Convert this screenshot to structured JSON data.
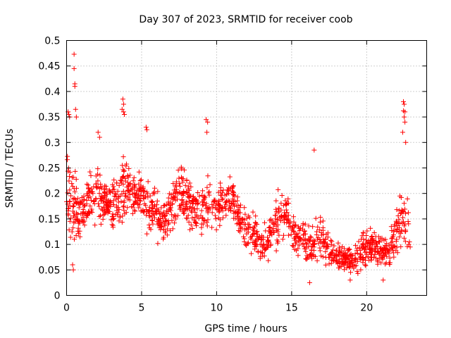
{
  "chart_data": {
    "type": "scatter",
    "title": "Day 307 of 2023, SRMTID for receiver coob",
    "xlabel": "GPS time / hours",
    "ylabel": "SRMTID / TECUs",
    "xlim": [
      0,
      24
    ],
    "ylim": [
      0,
      0.5
    ],
    "xticks": [
      0,
      5,
      10,
      15,
      20
    ],
    "xtick_labels": [
      "0",
      "5",
      "10",
      "15",
      "20"
    ],
    "yticks": [
      0,
      0.05,
      0.1,
      0.15,
      0.2,
      0.25,
      0.3,
      0.35,
      0.4,
      0.45,
      0.5
    ],
    "ytick_labels": [
      "0",
      "0.05",
      "0.1",
      "0.15",
      "0.2",
      "0.25",
      "0.3",
      "0.35",
      "0.4",
      "0.45",
      "0.5"
    ],
    "grid": true,
    "marker": "plus",
    "series_color": "#ff0000",
    "series": [
      {
        "name": "SRMTID",
        "envelope": {
          "x": [
            0,
            0.3,
            0.5,
            0.8,
            1.2,
            1.5,
            2.0,
            2.5,
            3.0,
            3.5,
            3.8,
            4.2,
            4.6,
            5.0,
            5.5,
            6.0,
            6.5,
            7.0,
            7.5,
            8.0,
            8.5,
            9.0,
            9.5,
            10.0,
            10.5,
            11.0,
            11.5,
            12.0,
            12.5,
            13.0,
            13.5,
            14.0,
            14.5,
            15.0,
            15.5,
            16.0,
            16.5,
            17.0,
            17.5,
            18.0,
            18.5,
            19.0,
            19.5,
            20.0,
            20.5,
            21.0,
            21.5,
            22.0,
            22.5,
            22.8
          ],
          "center": [
            0.21,
            0.2,
            0.18,
            0.16,
            0.17,
            0.19,
            0.2,
            0.19,
            0.18,
            0.19,
            0.2,
            0.21,
            0.2,
            0.19,
            0.18,
            0.16,
            0.15,
            0.18,
            0.2,
            0.19,
            0.17,
            0.16,
            0.18,
            0.17,
            0.18,
            0.19,
            0.15,
            0.13,
            0.12,
            0.1,
            0.11,
            0.15,
            0.16,
            0.13,
            0.12,
            0.1,
            0.1,
            0.12,
            0.09,
            0.08,
            0.075,
            0.07,
            0.08,
            0.1,
            0.09,
            0.08,
            0.09,
            0.12,
            0.15,
            0.15
          ],
          "spread": [
            0.07,
            0.1,
            0.08,
            0.05,
            0.04,
            0.05,
            0.06,
            0.05,
            0.05,
            0.06,
            0.07,
            0.05,
            0.04,
            0.05,
            0.06,
            0.05,
            0.04,
            0.05,
            0.05,
            0.05,
            0.04,
            0.05,
            0.06,
            0.04,
            0.04,
            0.04,
            0.035,
            0.035,
            0.04,
            0.035,
            0.04,
            0.05,
            0.05,
            0.04,
            0.045,
            0.04,
            0.04,
            0.05,
            0.035,
            0.03,
            0.025,
            0.025,
            0.03,
            0.035,
            0.035,
            0.03,
            0.04,
            0.05,
            0.06,
            0.04
          ]
        },
        "spikes": [
          {
            "x": 0.5,
            "y": 0.473
          },
          {
            "x": 0.5,
            "y": 0.445
          },
          {
            "x": 0.55,
            "y": 0.415
          },
          {
            "x": 0.55,
            "y": 0.41
          },
          {
            "x": 0.6,
            "y": 0.365
          },
          {
            "x": 0.1,
            "y": 0.36
          },
          {
            "x": 0.15,
            "y": 0.355
          },
          {
            "x": 0.2,
            "y": 0.35
          },
          {
            "x": 0.65,
            "y": 0.35
          },
          {
            "x": 3.75,
            "y": 0.385
          },
          {
            "x": 3.8,
            "y": 0.375
          },
          {
            "x": 3.7,
            "y": 0.365
          },
          {
            "x": 3.8,
            "y": 0.36
          },
          {
            "x": 3.85,
            "y": 0.355
          },
          {
            "x": 5.3,
            "y": 0.33
          },
          {
            "x": 5.35,
            "y": 0.325
          },
          {
            "x": 9.3,
            "y": 0.345
          },
          {
            "x": 9.4,
            "y": 0.34
          },
          {
            "x": 9.35,
            "y": 0.32
          },
          {
            "x": 2.1,
            "y": 0.32
          },
          {
            "x": 2.2,
            "y": 0.31
          },
          {
            "x": 22.45,
            "y": 0.38
          },
          {
            "x": 22.5,
            "y": 0.375
          },
          {
            "x": 22.45,
            "y": 0.362
          },
          {
            "x": 22.55,
            "y": 0.36
          },
          {
            "x": 22.5,
            "y": 0.35
          },
          {
            "x": 22.55,
            "y": 0.34
          },
          {
            "x": 22.4,
            "y": 0.32
          },
          {
            "x": 22.6,
            "y": 0.3
          },
          {
            "x": 16.5,
            "y": 0.285
          },
          {
            "x": 0.4,
            "y": 0.06
          },
          {
            "x": 0.45,
            "y": 0.05
          },
          {
            "x": 16.2,
            "y": 0.025
          },
          {
            "x": 18.9,
            "y": 0.03
          },
          {
            "x": 21.1,
            "y": 0.03
          },
          {
            "x": 22.8,
            "y": 0.1
          },
          {
            "x": 22.9,
            "y": 0.095
          },
          {
            "x": 22.85,
            "y": 0.105
          }
        ]
      }
    ]
  }
}
